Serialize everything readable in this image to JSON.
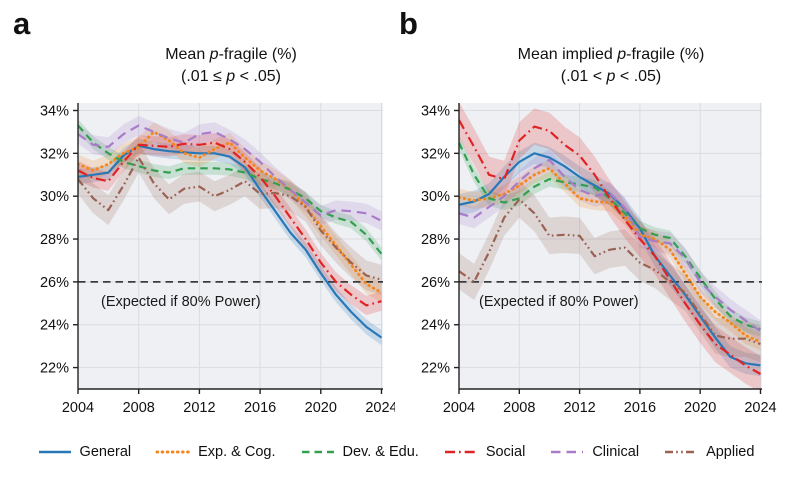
{
  "panels": [
    {
      "label": "a",
      "title": {
        "prefix": "Mean ",
        "italic": "p",
        "suffix": "-fragile (%)"
      },
      "subtitle": {
        "prefix": "(.01 ≤ ",
        "italic": "p",
        "suffix": " < .05)"
      },
      "annotation": "(Expected if 80% Power)"
    },
    {
      "label": "b",
      "title": {
        "prefix": "Mean implied ",
        "italic": "p",
        "suffix": "-fragile (%)"
      },
      "subtitle": {
        "prefix": "(.01 < ",
        "italic": "p",
        "suffix": " < .05)"
      },
      "annotation": "(Expected if 80% Power)"
    }
  ],
  "legend": {
    "items": [
      {
        "name": "General",
        "color": "#2878b8",
        "style": "solid"
      },
      {
        "name": "Exp. & Cog.",
        "color": "#f4861e",
        "style": "dotted"
      },
      {
        "name": "Dev. & Edu.",
        "color": "#33a050",
        "style": "dashed"
      },
      {
        "name": "Social",
        "color": "#e02425",
        "style": "dashdot"
      },
      {
        "name": "Clinical",
        "color": "#a87cc9",
        "style": "longdash"
      },
      {
        "name": "Applied",
        "color": "#9a6253",
        "style": "dashdotdot"
      }
    ]
  },
  "colors": {
    "plot_background": "#eef0f4",
    "grid": "#d9dce1",
    "spine": "#222222",
    "reference_line": "#3c3c3c",
    "text": "#111111"
  },
  "chart_data": [
    {
      "type": "line",
      "panel": "a",
      "title": "Mean p-fragile (%)",
      "subtitle": "(.01 <= p < .05)",
      "xlabel": "",
      "ylabel": "",
      "grid": true,
      "legend_position": "bottom",
      "x": [
        2004,
        2005,
        2006,
        2007,
        2008,
        2009,
        2010,
        2011,
        2012,
        2013,
        2014,
        2015,
        2016,
        2017,
        2018,
        2019,
        2020,
        2021,
        2022,
        2023,
        2024
      ],
      "xticks": [
        2004,
        2008,
        2012,
        2016,
        2020,
        2024
      ],
      "yticks": [
        22,
        24,
        26,
        28,
        30,
        32,
        34
      ],
      "ytick_suffix": "%",
      "xlim": [
        2004,
        2024.1
      ],
      "ylim": [
        21.0,
        34.35
      ],
      "reference_line": {
        "y": 26,
        "label": "(Expected if 80% Power)",
        "style": "dashed"
      },
      "series": [
        {
          "name": "General",
          "color": "#2878b8",
          "style": "solid",
          "band": 0.35,
          "values": [
            30.9,
            31.0,
            31.1,
            31.9,
            32.35,
            32.2,
            32.1,
            32.05,
            32.0,
            32.0,
            31.85,
            31.35,
            30.3,
            29.3,
            28.3,
            27.5,
            26.4,
            25.4,
            24.6,
            23.9,
            23.4
          ]
        },
        {
          "name": "Exp. & Cog.",
          "color": "#f4861e",
          "style": "dotted",
          "band": 0.45,
          "values": [
            31.5,
            31.2,
            31.5,
            32.0,
            32.3,
            33.0,
            32.6,
            32.0,
            31.8,
            32.2,
            32.5,
            31.8,
            31.2,
            30.8,
            30.3,
            29.5,
            28.6,
            27.7,
            26.8,
            25.9,
            25.5
          ]
        },
        {
          "name": "Dev. & Edu.",
          "color": "#33a050",
          "style": "dashed",
          "band": 0.3,
          "values": [
            33.3,
            32.5,
            32.0,
            31.6,
            31.4,
            31.2,
            31.1,
            31.3,
            31.3,
            31.3,
            31.25,
            31.1,
            30.8,
            30.6,
            30.3,
            29.9,
            29.3,
            29.0,
            28.8,
            28.2,
            27.3
          ]
        },
        {
          "name": "Social",
          "color": "#e02425",
          "style": "dashdot",
          "band": 0.45,
          "values": [
            31.2,
            30.85,
            30.7,
            31.6,
            32.4,
            32.35,
            32.3,
            32.45,
            32.4,
            32.5,
            32.2,
            31.6,
            30.9,
            30.0,
            29.0,
            28.0,
            26.9,
            26.0,
            25.4,
            24.9,
            25.1
          ]
        },
        {
          "name": "Clinical",
          "color": "#a87cc9",
          "style": "longdash",
          "band": 0.45,
          "values": [
            32.9,
            32.4,
            32.3,
            32.9,
            33.3,
            33.0,
            32.7,
            32.5,
            32.9,
            33.0,
            32.65,
            32.2,
            31.6,
            30.9,
            30.3,
            29.7,
            29.1,
            29.35,
            29.3,
            29.2,
            28.85
          ]
        },
        {
          "name": "Applied",
          "color": "#9a6253",
          "style": "dashdotdot",
          "band": 0.7,
          "values": [
            30.8,
            29.9,
            29.35,
            30.5,
            31.8,
            30.6,
            29.85,
            30.35,
            30.45,
            30.0,
            30.3,
            30.7,
            30.1,
            30.15,
            30.0,
            29.5,
            28.4,
            27.6,
            26.9,
            26.3,
            26.1
          ]
        }
      ]
    },
    {
      "type": "line",
      "panel": "b",
      "title": "Mean implied p-fragile (%)",
      "subtitle": "(.01 < p < .05)",
      "xlabel": "",
      "ylabel": "",
      "grid": true,
      "legend_position": "bottom",
      "x": [
        2004,
        2005,
        2006,
        2007,
        2008,
        2009,
        2010,
        2011,
        2012,
        2013,
        2014,
        2015,
        2016,
        2017,
        2018,
        2019,
        2020,
        2021,
        2022,
        2023,
        2024
      ],
      "xticks": [
        2004,
        2008,
        2012,
        2016,
        2020,
        2024
      ],
      "yticks": [
        22,
        24,
        26,
        28,
        30,
        32,
        34
      ],
      "ytick_suffix": "%",
      "xlim": [
        2004,
        2024.1
      ],
      "ylim": [
        21.0,
        34.35
      ],
      "reference_line": {
        "y": 26,
        "label": "(Expected if 80% Power)",
        "style": "dashed"
      },
      "series": [
        {
          "name": "General",
          "color": "#2878b8",
          "style": "solid",
          "band": 0.5,
          "values": [
            29.6,
            29.75,
            30.1,
            30.9,
            31.6,
            32.0,
            31.8,
            31.4,
            30.9,
            30.5,
            30.1,
            29.4,
            28.5,
            27.2,
            26.3,
            25.4,
            24.4,
            23.4,
            22.5,
            22.2,
            22.1
          ]
        },
        {
          "name": "Exp. & Cog.",
          "color": "#f4861e",
          "style": "dotted",
          "band": 0.4,
          "values": [
            29.95,
            29.8,
            29.9,
            30.1,
            30.5,
            31.0,
            31.3,
            30.6,
            29.9,
            29.75,
            29.7,
            29.05,
            28.2,
            28.0,
            27.5,
            26.4,
            25.3,
            24.6,
            24.1,
            23.5,
            23.2
          ]
        },
        {
          "name": "Dev. & Edu.",
          "color": "#33a050",
          "style": "dashed",
          "band": 0.35,
          "values": [
            32.5,
            31.0,
            29.9,
            29.7,
            29.9,
            30.45,
            30.8,
            30.65,
            30.55,
            30.4,
            29.9,
            29.2,
            28.5,
            28.2,
            28.05,
            27.2,
            26.2,
            25.2,
            24.4,
            24.0,
            23.8
          ]
        },
        {
          "name": "Social",
          "color": "#e02425",
          "style": "dashdot",
          "band": 0.85,
          "values": [
            33.55,
            32.3,
            31.0,
            30.8,
            32.6,
            33.25,
            33.05,
            32.4,
            31.9,
            31.0,
            29.9,
            28.9,
            28.0,
            27.2,
            26.1,
            25.0,
            24.0,
            23.1,
            22.6,
            22.1,
            21.7
          ]
        },
        {
          "name": "Clinical",
          "color": "#a87cc9",
          "style": "longdash",
          "band": 0.5,
          "values": [
            29.2,
            29.0,
            29.5,
            30.0,
            30.7,
            31.3,
            31.7,
            30.9,
            30.3,
            30.0,
            30.15,
            29.45,
            28.1,
            27.9,
            27.8,
            27.1,
            26.0,
            25.3,
            24.7,
            24.2,
            23.7
          ]
        },
        {
          "name": "Applied",
          "color": "#9a6253",
          "style": "dashdotdot",
          "band": 0.85,
          "values": [
            26.5,
            26.0,
            27.4,
            29.0,
            29.85,
            29.2,
            28.15,
            28.2,
            28.15,
            27.2,
            27.5,
            27.6,
            26.9,
            26.55,
            26.0,
            25.5,
            24.5,
            23.5,
            23.35,
            23.35,
            23.1
          ]
        }
      ]
    }
  ]
}
